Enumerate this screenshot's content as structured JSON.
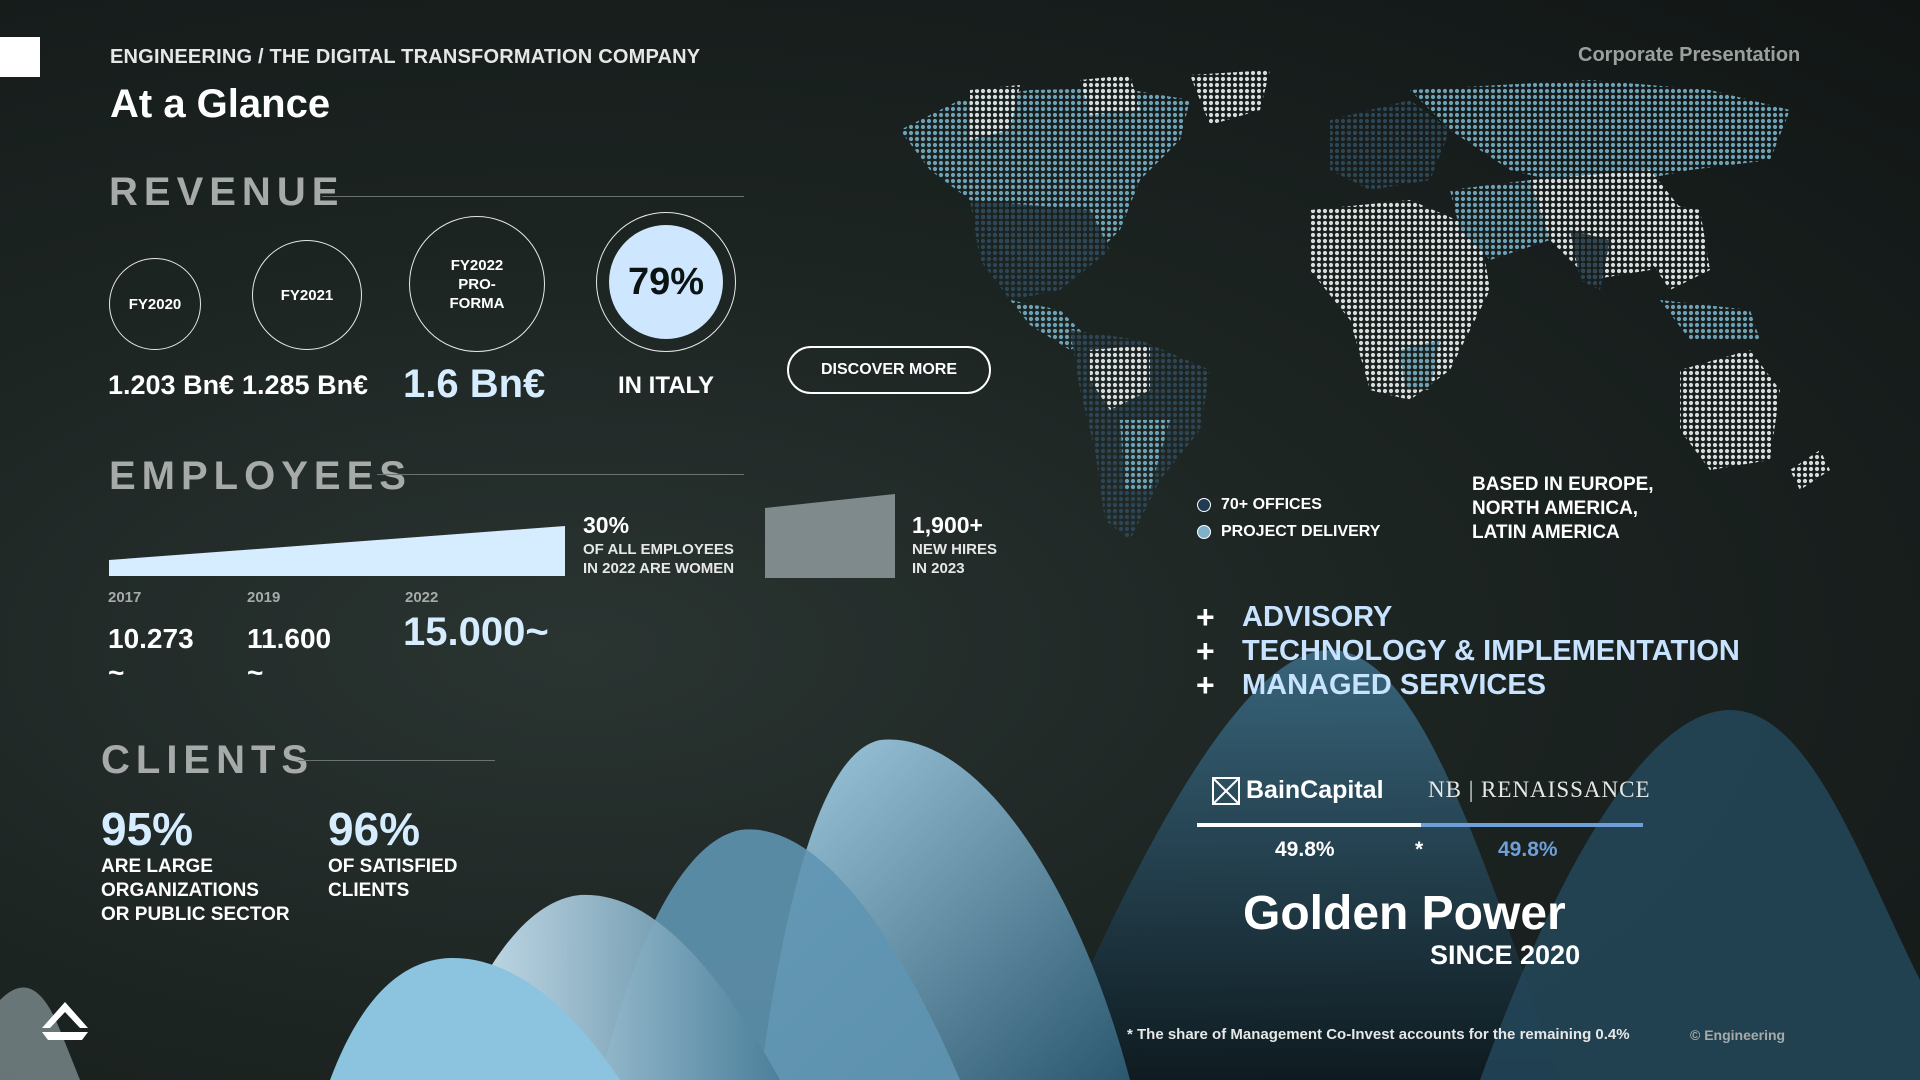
{
  "header": {
    "company_line": "ENGINEERING / THE DIGITAL TRANSFORMATION COMPANY",
    "title": "At a Glance",
    "corporate": "Corporate Presentation"
  },
  "revenue": {
    "heading": "REVENUE",
    "years": [
      {
        "label": "FY2020",
        "value": "1.203 Bn€"
      },
      {
        "label": "FY2021",
        "value": "1.285 Bn€"
      },
      {
        "label": "FY2022 PRO-FORMA",
        "value": "1.6 Bn€"
      }
    ],
    "italy_pct": "79%",
    "italy_label": "IN ITALY",
    "discover_label": "DISCOVER MORE"
  },
  "employees": {
    "heading": "EMPLOYEES",
    "years": [
      {
        "year": "2017",
        "value": "10.273 ~"
      },
      {
        "year": "2019",
        "value": "11.600 ~"
      },
      {
        "year": "2022",
        "value": "15.000~"
      }
    ],
    "women_pct": "30%",
    "women_label_1": "OF ALL EMPLOYEES",
    "women_label_2": "IN 2022 ARE WOMEN",
    "hires_count": "1,900+",
    "hires_label_1": "NEW HIRES",
    "hires_label_2": "IN 2023"
  },
  "clients": {
    "heading": "CLIENTS",
    "large_pct": "95%",
    "large_label_1": "ARE LARGE",
    "large_label_2": "ORGANIZATIONS",
    "large_label_3": "OR PUBLIC SECTOR",
    "satisfied_pct": "96%",
    "satisfied_label_1": "OF SATISFIED",
    "satisfied_label_2": "CLIENTS"
  },
  "map": {
    "legend": [
      {
        "label": "70+ OFFICES",
        "color": "#1f3c52"
      },
      {
        "label": "PROJECT DELIVERY",
        "color": "#7fb1c8"
      }
    ],
    "based_1": "BASED IN EUROPE,",
    "based_2": "NORTH AMERICA,",
    "based_3": "LATIN AMERICA"
  },
  "services": [
    "ADVISORY",
    "TECHNOLOGY & IMPLEMENTATION",
    "MANAGED SERVICES"
  ],
  "ownership": {
    "owner_a": "BainCapital",
    "owner_b": "NB | RENAISSANCE",
    "pct_a": "49.8%",
    "separator": "*",
    "pct_b": "49.8%",
    "colors": {
      "a": "#ffffff",
      "b": "#6f9fd8"
    }
  },
  "golden": {
    "title": "Golden Power",
    "since": "SINCE 2020"
  },
  "footer": {
    "note": "* The share of Management Co-Invest accounts for the remaining 0.4%",
    "copyright": "© Engineering"
  }
}
